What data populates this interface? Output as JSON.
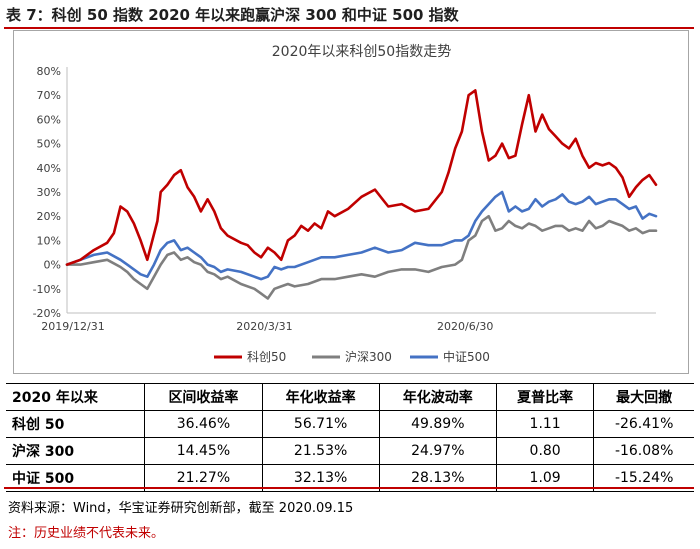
{
  "figure_title": "表 7：科创 50 指数 2020 年以来跑赢沪深 300 和中证 500 指数",
  "chart_data": {
    "type": "line",
    "title": "2020年以来科创50指数走势",
    "xlabel": "",
    "ylabel": "",
    "x_ticks": [
      "2019/12/31",
      "2020/3/31",
      "2020/6/30"
    ],
    "y_ticks": [
      "-20%",
      "-10%",
      "0%",
      "10%",
      "20%",
      "30%",
      "40%",
      "50%",
      "60%",
      "70%",
      "80%"
    ],
    "ylim": [
      -20,
      80
    ],
    "grid": false,
    "legend": "bottom",
    "x_range": [
      0,
      176
    ],
    "x_tick_positions": [
      0,
      59,
      119
    ],
    "series": [
      {
        "name": "科创50",
        "color": "#c00000",
        "x": [
          0,
          4,
          8,
          12,
          14,
          16,
          18,
          20,
          22,
          24,
          27,
          28,
          30,
          32,
          34,
          36,
          38,
          40,
          42,
          44,
          46,
          48,
          52,
          54,
          56,
          58,
          60,
          62,
          64,
          66,
          68,
          70,
          72,
          74,
          76,
          78,
          80,
          84,
          88,
          92,
          96,
          100,
          104,
          108,
          112,
          114,
          116,
          118,
          120,
          122,
          124,
          126,
          128,
          130,
          132,
          134,
          136,
          138,
          140,
          142,
          144,
          146,
          148,
          150,
          152,
          154,
          156,
          158,
          160,
          162,
          164,
          166,
          168,
          170,
          172,
          174,
          176
        ],
        "values": [
          0,
          2,
          6,
          9,
          13,
          24,
          22,
          17,
          10,
          2,
          18,
          30,
          33,
          37,
          39,
          32,
          28,
          22,
          27,
          22,
          15,
          12,
          9,
          8,
          5,
          3,
          7,
          5,
          2,
          10,
          12,
          16,
          14,
          17,
          15,
          22,
          20,
          23,
          28,
          31,
          24,
          25,
          22,
          23,
          30,
          38,
          48,
          55,
          70,
          72,
          55,
          43,
          45,
          50,
          44,
          45,
          58,
          70,
          55,
          62,
          56,
          53,
          50,
          48,
          52,
          45,
          40,
          42,
          41,
          42,
          40,
          36,
          28,
          32,
          35,
          37,
          33
        ]
      },
      {
        "name": "沪深300",
        "color": "#7f7f7f",
        "x": [
          0,
          4,
          8,
          12,
          16,
          18,
          20,
          22,
          24,
          26,
          28,
          30,
          32,
          34,
          36,
          38,
          40,
          42,
          44,
          46,
          48,
          52,
          56,
          58,
          60,
          62,
          64,
          66,
          68,
          72,
          76,
          80,
          84,
          88,
          92,
          96,
          100,
          104,
          108,
          112,
          116,
          118,
          120,
          122,
          124,
          126,
          128,
          130,
          132,
          134,
          136,
          138,
          140,
          142,
          144,
          146,
          148,
          150,
          152,
          154,
          156,
          158,
          160,
          162,
          164,
          166,
          168,
          170,
          172,
          174,
          176
        ],
        "values": [
          0,
          0,
          1,
          2,
          -1,
          -3,
          -6,
          -8,
          -10,
          -5,
          0,
          4,
          5,
          2,
          3,
          1,
          0,
          -3,
          -4,
          -6,
          -5,
          -8,
          -10,
          -12,
          -14,
          -10,
          -9,
          -8,
          -9,
          -8,
          -6,
          -6,
          -5,
          -4,
          -5,
          -3,
          -2,
          -2,
          -3,
          -1,
          0,
          2,
          10,
          12,
          18,
          20,
          14,
          15,
          18,
          16,
          15,
          17,
          16,
          14,
          15,
          16,
          16,
          14,
          15,
          14,
          18,
          15,
          16,
          18,
          17,
          16,
          14,
          15,
          13,
          14,
          14
        ]
      },
      {
        "name": "中证500",
        "color": "#4472c4",
        "x": [
          0,
          4,
          8,
          12,
          16,
          18,
          20,
          22,
          24,
          26,
          28,
          30,
          32,
          34,
          36,
          38,
          40,
          42,
          44,
          46,
          48,
          52,
          56,
          58,
          60,
          62,
          64,
          66,
          68,
          72,
          76,
          80,
          84,
          88,
          92,
          96,
          100,
          104,
          108,
          112,
          116,
          118,
          120,
          122,
          124,
          126,
          128,
          130,
          132,
          134,
          136,
          138,
          140,
          142,
          144,
          146,
          148,
          150,
          152,
          154,
          156,
          158,
          160,
          162,
          164,
          166,
          168,
          170,
          172,
          174,
          176
        ],
        "values": [
          0,
          2,
          4,
          5,
          2,
          0,
          -2,
          -4,
          -5,
          0,
          6,
          9,
          10,
          6,
          7,
          5,
          3,
          0,
          -1,
          -3,
          -2,
          -3,
          -5,
          -6,
          -5,
          -1,
          -2,
          -1,
          -1,
          1,
          3,
          3,
          4,
          5,
          7,
          5,
          6,
          9,
          8,
          8,
          10,
          10,
          12,
          18,
          22,
          25,
          28,
          30,
          22,
          24,
          22,
          23,
          27,
          24,
          26,
          27,
          29,
          26,
          25,
          26,
          28,
          25,
          26,
          27,
          27,
          25,
          23,
          24,
          19,
          21,
          20
        ]
      }
    ]
  },
  "table": {
    "headers": [
      "2020 年以来",
      "区间收益率",
      "年化收益率",
      "年化波动率",
      "夏普比率",
      "最大回撤"
    ],
    "rows": [
      [
        "科创 50",
        "36.46%",
        "56.71%",
        "49.89%",
        "1.11",
        "-26.41%"
      ],
      [
        "沪深 300",
        "14.45%",
        "21.53%",
        "24.97%",
        "0.80",
        "-16.08%"
      ],
      [
        "中证 500",
        "21.27%",
        "32.13%",
        "28.13%",
        "1.09",
        "-15.24%"
      ]
    ]
  },
  "source": "资料来源：Wind，华宝证券研究创新部，截至 2020.09.15",
  "note": "注：历史业绩不代表未来。"
}
